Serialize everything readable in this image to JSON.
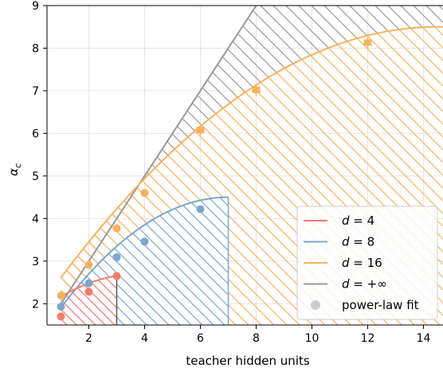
{
  "chart_data": {
    "type": "scatter",
    "xlabel": "teacher hidden units",
    "ylabel": "α",
    "ylabel_sub": "c",
    "xlim": [
      0.5,
      14.7
    ],
    "ylim": [
      1.5,
      9.0
    ],
    "xticks": [
      2,
      4,
      6,
      8,
      10,
      12,
      14
    ],
    "yticks": [
      2,
      3,
      4,
      5,
      6,
      7,
      8,
      9
    ],
    "grid": true,
    "legend_position": "bottom-right",
    "colors": {
      "d4": "#f07b6f",
      "d8": "#7ba7cc",
      "d16": "#f8b25f",
      "dinf": "#999999",
      "fit": "#cccccc"
    },
    "series": [
      {
        "name": "d = 4",
        "legend_main": "d",
        "legend_value": "4",
        "color": "#f07b6f",
        "points": [
          {
            "x": 1,
            "y": 1.7
          },
          {
            "x": 2,
            "y": 2.28
          },
          {
            "x": 3,
            "y": 2.65
          }
        ],
        "curve_x_end": 3
      },
      {
        "name": "d = 8",
        "legend_main": "d",
        "legend_value": "8",
        "color": "#7ba7cc",
        "points": [
          {
            "x": 1,
            "y": 1.93
          },
          {
            "x": 2,
            "y": 2.48
          },
          {
            "x": 3,
            "y": 3.09
          },
          {
            "x": 4,
            "y": 3.46
          },
          {
            "x": 6,
            "y": 4.22
          }
        ],
        "curve_x_end": 7
      },
      {
        "name": "d = 16",
        "legend_main": "d",
        "legend_value": "16",
        "color": "#f8b25f",
        "points": [
          {
            "x": 1,
            "y": 2.19
          },
          {
            "x": 2,
            "y": 2.91
          },
          {
            "x": 3,
            "y": 3.77
          },
          {
            "x": 4,
            "y": 4.6
          },
          {
            "x": 6,
            "y": 6.08
          },
          {
            "x": 8,
            "y": 7.02
          },
          {
            "x": 12,
            "y": 8.13
          }
        ],
        "curve_x_end": 14.7
      },
      {
        "name": "d = +∞",
        "legend_main": "d",
        "legend_value": "+∞",
        "color": "#999999",
        "line": [
          {
            "x": 1,
            "y": 2.0
          },
          {
            "x": 8,
            "y": 9.0
          }
        ]
      }
    ],
    "legend_extra": "power-law fit"
  }
}
